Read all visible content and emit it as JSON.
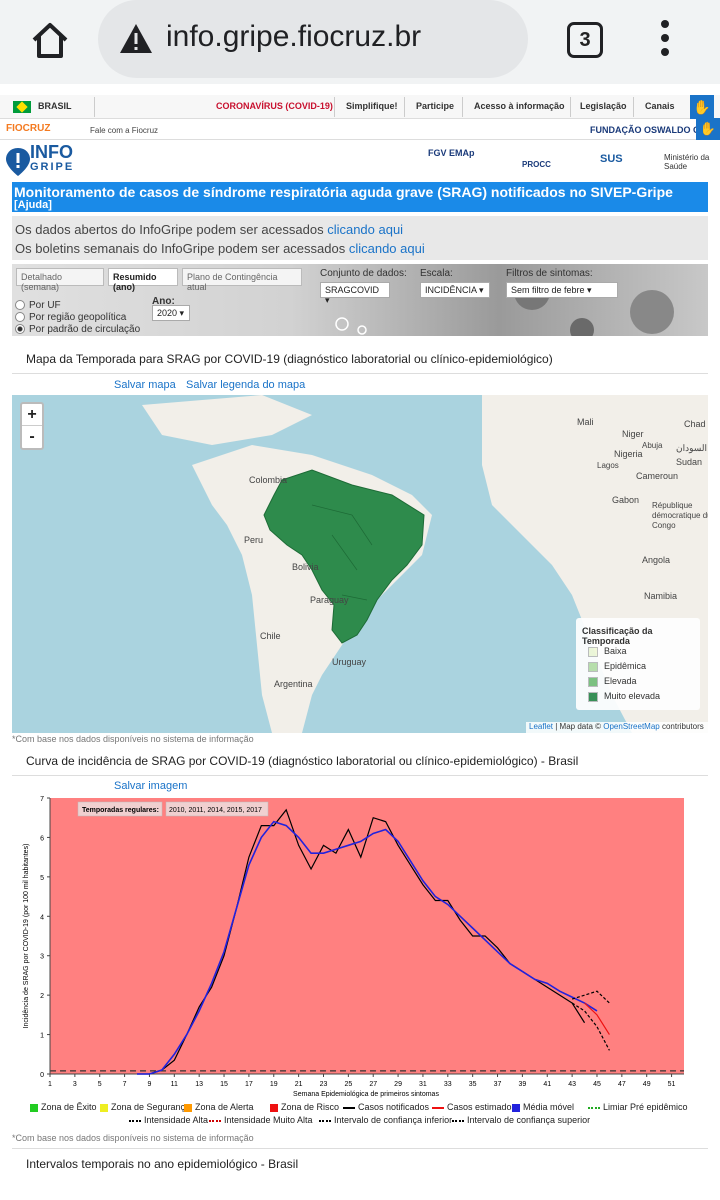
{
  "browser": {
    "url": "info.gripe.fiocruz.br",
    "tab_count": "3"
  },
  "gov_bar": {
    "country": "BRASIL",
    "items": [
      "CORONAVÍRUS (COVID-19)",
      "Simplifique!",
      "Participe",
      "Acesso à informação",
      "Legislação",
      "Canais"
    ],
    "highlight_color": "#c8102e"
  },
  "fiocruz_bar": {
    "logo": "FIOCRUZ",
    "contact": "Fale com a Fiocruz",
    "foundation": "FUNDAÇÃO OSWALDO C"
  },
  "brand": {
    "name_line1": "INFO",
    "name_line2": "GRIPE",
    "partners": [
      "FGV EMAp",
      "PROCC",
      "SUS",
      "Ministério da Saúde"
    ]
  },
  "title": {
    "text": "Monitoramento de casos de síndrome respiratória aguda grave (SRAG) notificados no SIVEP-Gripe",
    "help": "[Ajuda]"
  },
  "links": {
    "open_data_text": "Os dados abertos do InfoGripe podem ser acessados ",
    "open_data_link": "clicando aqui",
    "bulletins_text": "Os boletins semanais do InfoGripe podem ser acessados ",
    "bulletins_link": "clicando aqui"
  },
  "controls": {
    "tabs": [
      "Detalhado (semana)",
      "Resumido (ano)",
      "Plano de Contingência atual"
    ],
    "dataset_label": "Conjunto de dados:",
    "dataset_value": "SRAGCOVID",
    "scale_label": "Escala:",
    "scale_value": "INCIDÊNCIA",
    "filter_label": "Filtros de sintomas:",
    "filter_value": "Sem filtro de febre",
    "radios": [
      "Por UF",
      "Por região geopolítica",
      "Por padrão de circulação"
    ],
    "year_label": "Ano:",
    "year_value": "2020"
  },
  "map_panel": {
    "title": "Mapa da Temporada para SRAG por COVID-19 (diagnóstico laboratorial ou clínico-epidemiológico)",
    "save_map": "Salvar mapa",
    "save_legend": "Salvar legenda do mapa",
    "labels": [
      "Colombia",
      "Peru",
      "Bolivia",
      "Paraguay",
      "Chile",
      "Argentina",
      "Uruguay",
      "Mali",
      "Niger",
      "Chad",
      "Sudan",
      "السودان",
      "Nigeria",
      "Cameroun",
      "Gabon",
      "Angola",
      "Namibia",
      "République démocratique du Congo",
      "Lagos",
      "Abuja"
    ],
    "legend_title": "Classificação da Temporada",
    "legend_items": [
      {
        "label": "Baixa",
        "color": "#f0f8d8"
      },
      {
        "label": "Epidêmica",
        "color": "#b8e0a8"
      },
      {
        "label": "Elevada",
        "color": "#78c07a"
      },
      {
        "label": "Muito elevada",
        "color": "#2e8b4c"
      }
    ],
    "attribution_leaflet": "Leaflet",
    "attribution_text": " | Map data © ",
    "attribution_osm": "OpenStreetMap",
    "attribution_contrib": " contributors",
    "note": "*Com base nos dados disponíveis no sistema de informação",
    "zoom_in": "+",
    "zoom_out": "-"
  },
  "curve_panel": {
    "title": "Curva de incidência de SRAG por COVID-19 (diagnóstico laboratorial ou clínico-epidemiológico) - Brasil",
    "save_image": "Salvar imagem",
    "note": "*Com base nos dados disponíveis no sistema de informação",
    "legend": [
      {
        "label": "Zona de Êxito",
        "color": "#22cc22",
        "style": "square"
      },
      {
        "label": "Zona de Segurança",
        "color": "#eeee22",
        "style": "square"
      },
      {
        "label": "Zona de Alerta",
        "color": "#ff9900",
        "style": "square"
      },
      {
        "label": "Zona de Risco",
        "color": "#ee1111",
        "style": "square"
      },
      {
        "label": "Casos notificados",
        "color": "#000000",
        "style": "line"
      },
      {
        "label": "Casos estimados",
        "color": "#ee1111",
        "style": "line"
      },
      {
        "label": "Média móvel",
        "color": "#2222dd",
        "style": "square"
      },
      {
        "label": "Limiar Pré epidêmico",
        "color": "#22aa22",
        "style": "dot"
      },
      {
        "label": "Intensidade Alta",
        "color": "#000000",
        "style": "dot"
      },
      {
        "label": "Intensidade Muito Alta",
        "color": "#cc0000",
        "style": "dot"
      },
      {
        "label": "Intervalo de confiança inferior",
        "color": "#000000",
        "style": "dot"
      },
      {
        "label": "Intervalo de confiança superior",
        "color": "#000000",
        "style": "dot"
      }
    ]
  },
  "last_panel": {
    "title": "Intervalos temporais no ano epidemiológico - Brasil"
  },
  "chart_data": {
    "type": "line",
    "title": "",
    "xlabel": "Semana Epidemiológica de primeiros sintomas",
    "ylabel": "Incidência de SRAG por COVID-19 (por 100 mil habitantes)",
    "xlim": [
      1,
      52
    ],
    "ylim": [
      0,
      7
    ],
    "x_ticks": [
      1,
      3,
      5,
      7,
      9,
      11,
      13,
      15,
      17,
      19,
      21,
      23,
      25,
      27,
      29,
      31,
      33,
      35,
      37,
      39,
      41,
      43,
      45,
      47,
      49,
      51
    ],
    "y_ticks": [
      0,
      1,
      2,
      3,
      4,
      5,
      6,
      7
    ],
    "annotation_label": "Temporadas regulares:",
    "annotation_value": "2010, 2011, 2014, 2015, 2017",
    "background_zone": "#ff8080",
    "series": [
      {
        "name": "Casos notificados",
        "color": "#000000",
        "x": [
          8,
          9,
          10,
          11,
          12,
          13,
          14,
          15,
          16,
          17,
          18,
          19,
          20,
          21,
          22,
          23,
          24,
          25,
          26,
          27,
          28,
          29,
          30,
          31,
          32,
          33,
          34,
          35,
          36,
          37,
          38,
          39,
          40,
          41,
          42,
          43,
          44
        ],
        "y": [
          0,
          0,
          0.1,
          0.35,
          1.0,
          1.7,
          2.2,
          3.0,
          4.2,
          5.5,
          6.3,
          6.3,
          6.7,
          5.8,
          5.2,
          5.8,
          5.6,
          6.2,
          5.5,
          6.5,
          6.4,
          5.8,
          5.3,
          4.8,
          4.4,
          4.4,
          3.9,
          3.5,
          3.5,
          3.2,
          2.8,
          2.6,
          2.4,
          2.2,
          2.0,
          1.8,
          1.3
        ]
      },
      {
        "name": "Média móvel",
        "color": "#2222dd",
        "x": [
          8,
          9,
          10,
          11,
          12,
          13,
          14,
          15,
          16,
          17,
          18,
          19,
          20,
          21,
          22,
          23,
          24,
          25,
          26,
          27,
          28,
          29,
          30,
          31,
          32,
          33,
          34,
          35,
          36,
          37,
          38,
          39,
          40,
          41,
          42,
          43,
          44,
          45
        ],
        "y": [
          0,
          0,
          0.1,
          0.5,
          1.0,
          1.6,
          2.3,
          3.1,
          4.2,
          5.3,
          6.0,
          6.4,
          6.3,
          6.0,
          5.6,
          5.6,
          5.7,
          5.8,
          5.9,
          6.1,
          6.2,
          5.9,
          5.4,
          4.9,
          4.5,
          4.3,
          4.0,
          3.7,
          3.4,
          3.1,
          2.8,
          2.6,
          2.4,
          2.3,
          2.1,
          1.95,
          1.8,
          1.6
        ]
      },
      {
        "name": "Casos estimados",
        "color": "#ee1111",
        "x": [
          44,
          45,
          46
        ],
        "y": [
          1.8,
          1.5,
          1.0
        ]
      },
      {
        "name": "Intervalo de confiança superior",
        "color": "#000000",
        "x": [
          43,
          44,
          45,
          46
        ],
        "y": [
          1.9,
          2.0,
          2.1,
          1.8
        ]
      },
      {
        "name": "Intervalo de confiança inferior",
        "color": "#000000",
        "x": [
          43,
          44,
          45,
          46
        ],
        "y": [
          1.8,
          1.6,
          1.2,
          0.6
        ]
      }
    ]
  }
}
